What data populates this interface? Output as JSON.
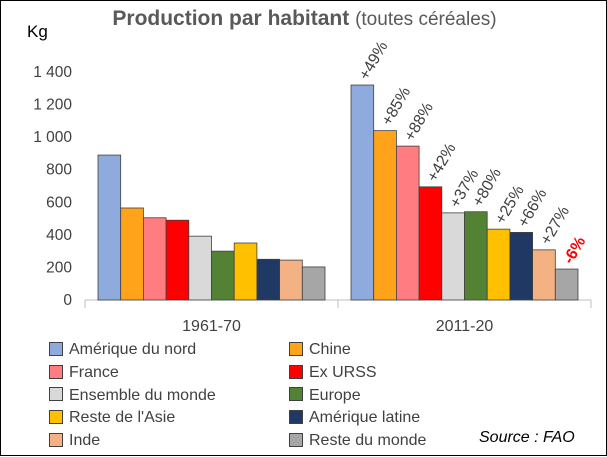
{
  "chart_data": {
    "type": "bar",
    "title": "Production par habitant",
    "subtitle": "(toutes céréales)",
    "ylabel": "Kg",
    "ylim": [
      0,
      1400
    ],
    "yticks": [
      "0",
      "200",
      "400",
      "600",
      "800",
      "1 000",
      "1 200",
      "1 400"
    ],
    "ytick_values": [
      0,
      200,
      400,
      600,
      800,
      1000,
      1200,
      1400
    ],
    "categories": [
      "1961-70",
      "2011-20"
    ],
    "series": [
      {
        "name": "Amérique du nord",
        "color": "#8faadc",
        "values": [
          890,
          1320
        ],
        "change": "+49%"
      },
      {
        "name": "Chine",
        "color": "#ffa31a",
        "values": [
          565,
          1040
        ],
        "change": "+85%"
      },
      {
        "name": "France",
        "color": "#ff7c80",
        "values": [
          505,
          945
        ],
        "change": "+88%"
      },
      {
        "name": "Ex URSS",
        "color": "#ff0000",
        "values": [
          490,
          695
        ],
        "change": "+42%"
      },
      {
        "name": "Ensemble du monde",
        "color": "#d9d9d9",
        "values": [
          392,
          535
        ],
        "change": "+37%"
      },
      {
        "name": "Europe",
        "color": "#548235",
        "values": [
          300,
          542
        ],
        "change": "+80%"
      },
      {
        "name": "Reste de l'Asie",
        "color": "#ffc000",
        "values": [
          350,
          435
        ],
        "change": "+25%"
      },
      {
        "name": "Amérique latine",
        "color": "#203864",
        "values": [
          250,
          415
        ],
        "change": "+66%"
      },
      {
        "name": "Inde",
        "color": "#f4b183",
        "values": [
          245,
          308
        ],
        "change": "+27%"
      },
      {
        "name": "Reste du monde",
        "color": "#a6a6a6",
        "values": [
          203,
          190
        ],
        "change": "-6%"
      }
    ],
    "legend_placement": "bottom",
    "legend_order": [
      "Amérique du nord",
      "Chine",
      "France",
      "Ex URSS",
      "Ensemble du monde",
      "Europe",
      "Reste de l'Asie",
      "Amérique latine",
      "Inde",
      "Reste du monde"
    ],
    "grid": false
  },
  "source": "Source : FAO"
}
